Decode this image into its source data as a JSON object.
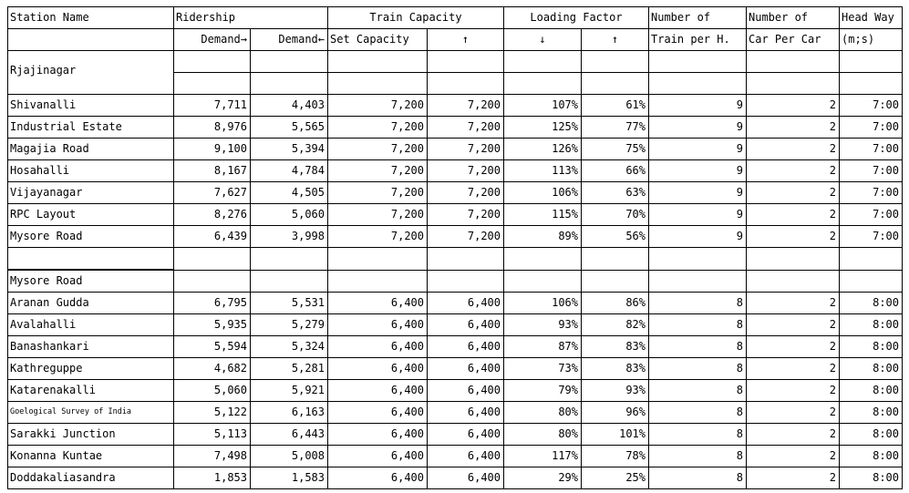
{
  "headers": {
    "station_name": "Station Name",
    "ridership": "Ridership",
    "train_capacity": "Train Capacity",
    "loading_factor": "Loading Factor",
    "num_trains": "Number of",
    "num_cars": "Number of",
    "headway": "Head Way",
    "demand_right": "Demand→",
    "demand_left": "Demand←",
    "set_capacity": "Set Capacity",
    "arrow_up": "↑",
    "arrow_down": "↓",
    "arrow_up2": "↑",
    "train_per_h": "Train per H.",
    "car_per_car": "Car Per Car",
    "headway_unit": "(m;s)"
  },
  "section1": {
    "title": "Rjajinagar",
    "rows": [
      {
        "station": "Shivanalli",
        "d1": "7,711",
        "d2": "4,403",
        "cap1": "7,200",
        "cap2": "7,200",
        "lf1": "107%",
        "lf2": "61%",
        "trains": "9",
        "cars": "2",
        "headway": "7:00"
      },
      {
        "station": "Industrial Estate",
        "d1": "8,976",
        "d2": "5,565",
        "cap1": "7,200",
        "cap2": "7,200",
        "lf1": "125%",
        "lf2": "77%",
        "trains": "9",
        "cars": "2",
        "headway": "7:00"
      },
      {
        "station": "Magajia Road",
        "d1": "9,100",
        "d2": "5,394",
        "cap1": "7,200",
        "cap2": "7,200",
        "lf1": "126%",
        "lf2": "75%",
        "trains": "9",
        "cars": "2",
        "headway": "7:00"
      },
      {
        "station": "Hosahalli",
        "d1": "8,167",
        "d2": "4,784",
        "cap1": "7,200",
        "cap2": "7,200",
        "lf1": "113%",
        "lf2": "66%",
        "trains": "9",
        "cars": "2",
        "headway": "7:00"
      },
      {
        "station": "Vijayanagar",
        "d1": "7,627",
        "d2": "4,505",
        "cap1": "7,200",
        "cap2": "7,200",
        "lf1": "106%",
        "lf2": "63%",
        "trains": "9",
        "cars": "2",
        "headway": "7:00"
      },
      {
        "station": "RPC Layout",
        "d1": "8,276",
        "d2": "5,060",
        "cap1": "7,200",
        "cap2": "7,200",
        "lf1": "115%",
        "lf2": "70%",
        "trains": "9",
        "cars": "2",
        "headway": "7:00"
      },
      {
        "station": "Mysore Road",
        "d1": "6,439",
        "d2": "3,998",
        "cap1": "7,200",
        "cap2": "7,200",
        "lf1": "89%",
        "lf2": "56%",
        "trains": "9",
        "cars": "2",
        "headway": "7:00"
      }
    ]
  },
  "section2": {
    "title": "Mysore Road",
    "rows": [
      {
        "station": "Aranan Gudda",
        "d1": "6,795",
        "d2": "5,531",
        "cap1": "6,400",
        "cap2": "6,400",
        "lf1": "106%",
        "lf2": "86%",
        "trains": "8",
        "cars": "2",
        "headway": "8:00",
        "small": false
      },
      {
        "station": "Avalahalli",
        "d1": "5,935",
        "d2": "5,279",
        "cap1": "6,400",
        "cap2": "6,400",
        "lf1": "93%",
        "lf2": "82%",
        "trains": "8",
        "cars": "2",
        "headway": "8:00",
        "small": false
      },
      {
        "station": "Banashankari",
        "d1": "5,594",
        "d2": "5,324",
        "cap1": "6,400",
        "cap2": "6,400",
        "lf1": "87%",
        "lf2": "83%",
        "trains": "8",
        "cars": "2",
        "headway": "8:00",
        "small": false
      },
      {
        "station": "Kathreguppe",
        "d1": "4,682",
        "d2": "5,281",
        "cap1": "6,400",
        "cap2": "6,400",
        "lf1": "73%",
        "lf2": "83%",
        "trains": "8",
        "cars": "2",
        "headway": "8:00",
        "small": false
      },
      {
        "station": "Katarenakalli",
        "d1": "5,060",
        "d2": "5,921",
        "cap1": "6,400",
        "cap2": "6,400",
        "lf1": "79%",
        "lf2": "93%",
        "trains": "8",
        "cars": "2",
        "headway": "8:00",
        "small": false
      },
      {
        "station": "Goelogical Survey of India",
        "d1": "5,122",
        "d2": "6,163",
        "cap1": "6,400",
        "cap2": "6,400",
        "lf1": "80%",
        "lf2": "96%",
        "trains": "8",
        "cars": "2",
        "headway": "8:00",
        "small": true
      },
      {
        "station": "Sarakki Junction",
        "d1": "5,113",
        "d2": "6,443",
        "cap1": "6,400",
        "cap2": "6,400",
        "lf1": "80%",
        "lf2": "101%",
        "trains": "8",
        "cars": "2",
        "headway": "8:00",
        "small": false
      },
      {
        "station": "Konanna Kuntae",
        "d1": "7,498",
        "d2": "5,008",
        "cap1": "6,400",
        "cap2": "6,400",
        "lf1": "117%",
        "lf2": "78%",
        "trains": "8",
        "cars": "2",
        "headway": "8:00",
        "small": false
      },
      {
        "station": "Doddakaliasandra",
        "d1": "1,853",
        "d2": "1,583",
        "cap1": "6,400",
        "cap2": "6,400",
        "lf1": "29%",
        "lf2": "25%",
        "trains": "8",
        "cars": "2",
        "headway": "8:00",
        "small": false
      }
    ]
  }
}
